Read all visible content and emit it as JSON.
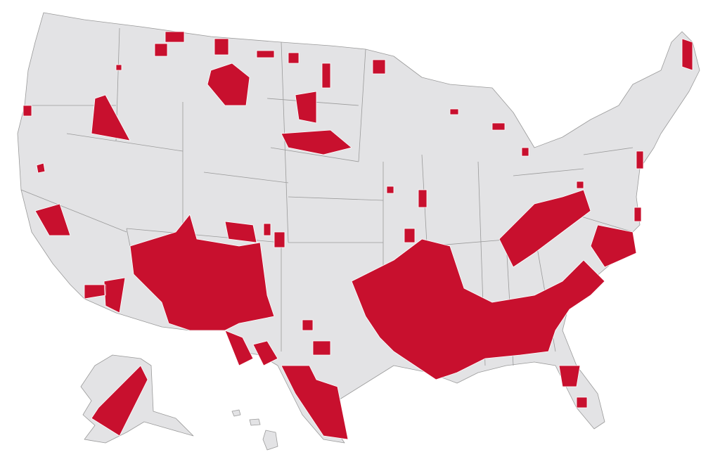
{
  "map": {
    "base_color": "#e3e3e5",
    "highlight_color": "#c8102e",
    "border_color": "#9a9a9a"
  }
}
